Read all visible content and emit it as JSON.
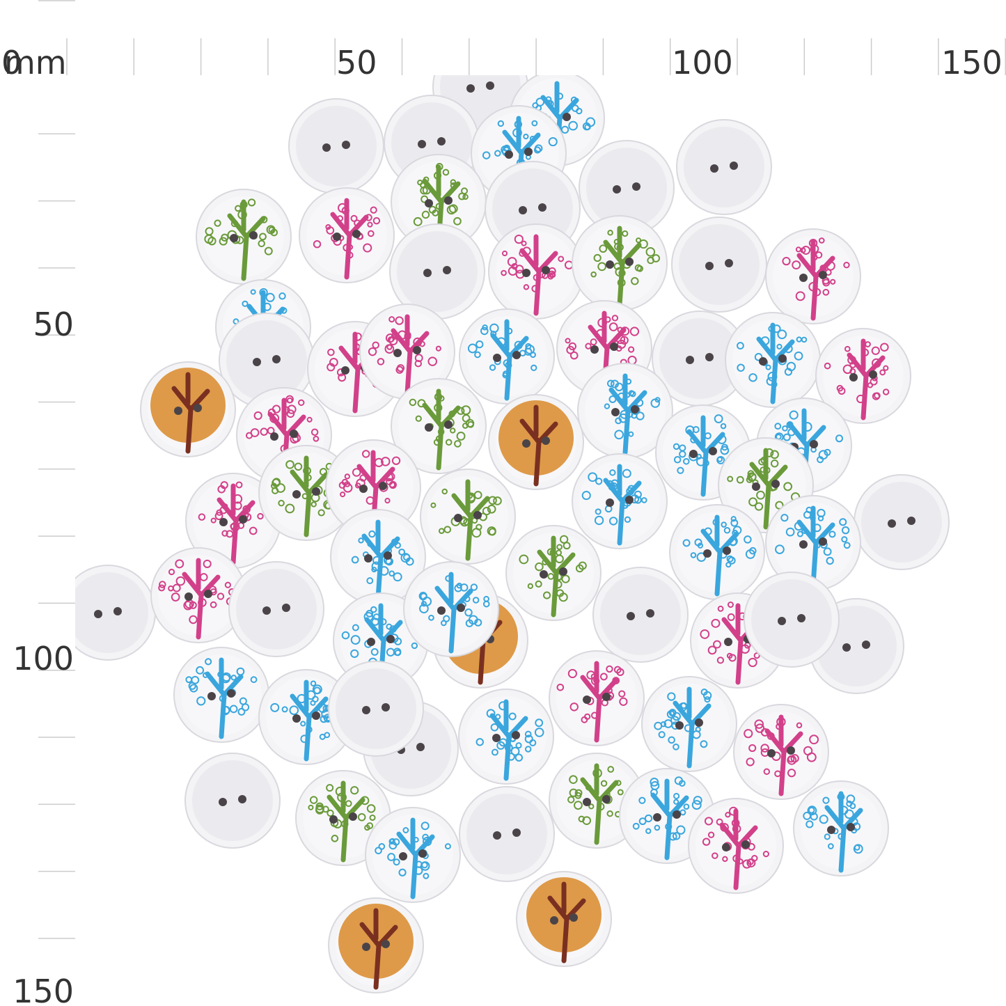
{
  "top_ruler": {
    "zero": "0",
    "unit": "mm",
    "labels": [
      "50",
      "100",
      "150"
    ]
  },
  "left_ruler": {
    "labels": [
      "50",
      "100",
      "150"
    ]
  }
}
